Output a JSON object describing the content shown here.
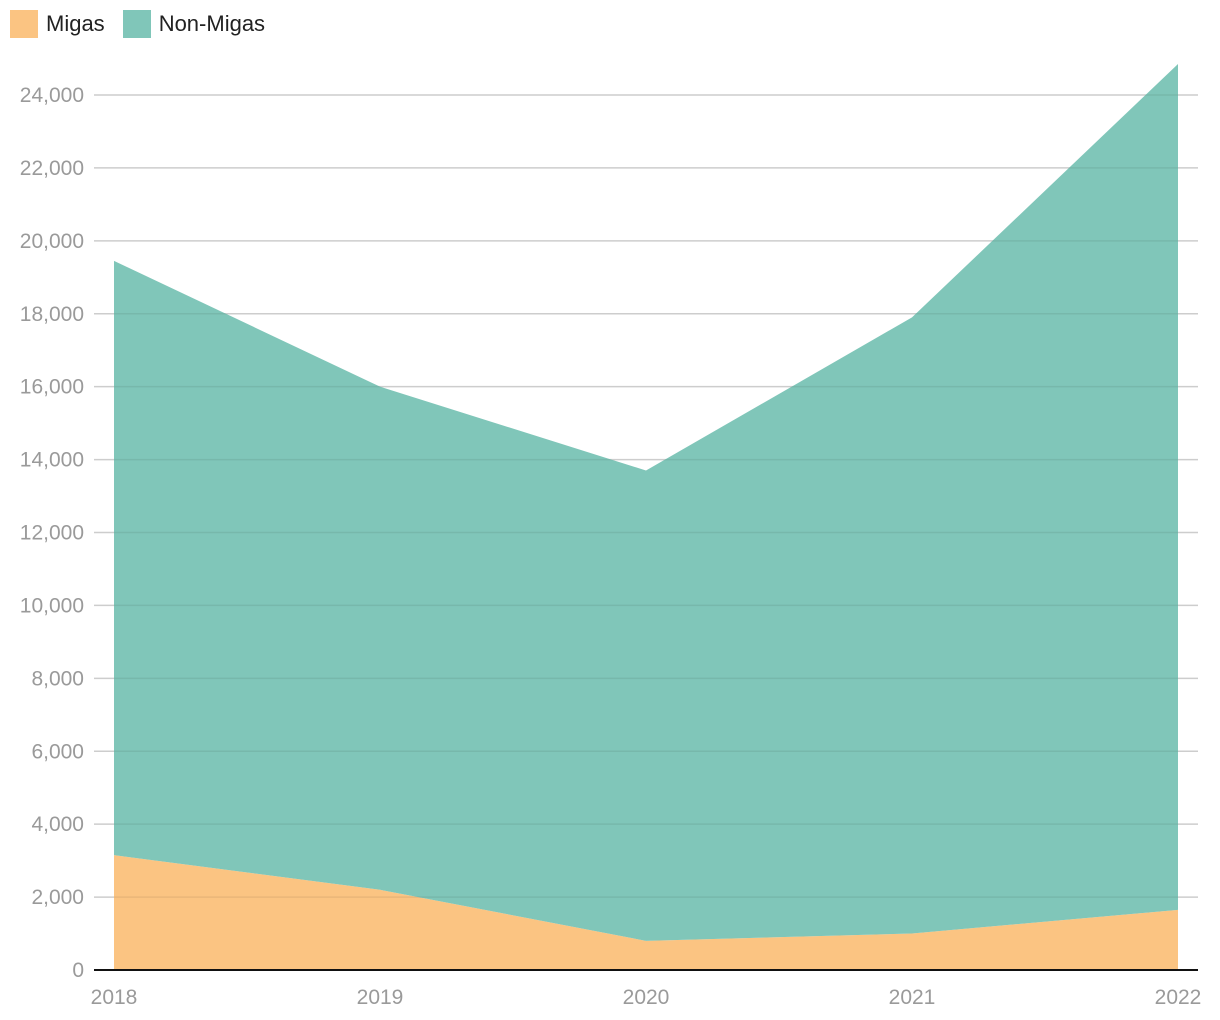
{
  "legend": [
    {
      "label": "Migas",
      "color": "#fbc482"
    },
    {
      "label": "Non-Migas",
      "color": "#80c6b9"
    }
  ],
  "chart_data": {
    "type": "area",
    "stacked": true,
    "categories": [
      "2018",
      "2019",
      "2020",
      "2021",
      "2022"
    ],
    "series": [
      {
        "name": "Migas",
        "color": "#fbc482",
        "values": [
          3150,
          2200,
          800,
          1000,
          1650
        ]
      },
      {
        "name": "Non-Migas",
        "color": "#80c6b9",
        "values": [
          16300,
          13800,
          12900,
          16900,
          23200
        ]
      }
    ],
    "totals": [
      19450,
      16000,
      13700,
      17900,
      24850
    ],
    "ylim": [
      0,
      25000
    ],
    "yticks": [
      0,
      2000,
      4000,
      6000,
      8000,
      10000,
      12000,
      14000,
      16000,
      18000,
      20000,
      22000,
      24000
    ],
    "ytick_labels": [
      "0",
      "2,000",
      "4,000",
      "6,000",
      "8,000",
      "10,000",
      "12,000",
      "14,000",
      "16,000",
      "18,000",
      "20,000",
      "22,000",
      "24,000"
    ],
    "grid": true,
    "legend_position": "top-left",
    "title": "",
    "xlabel": "",
    "ylabel": ""
  }
}
